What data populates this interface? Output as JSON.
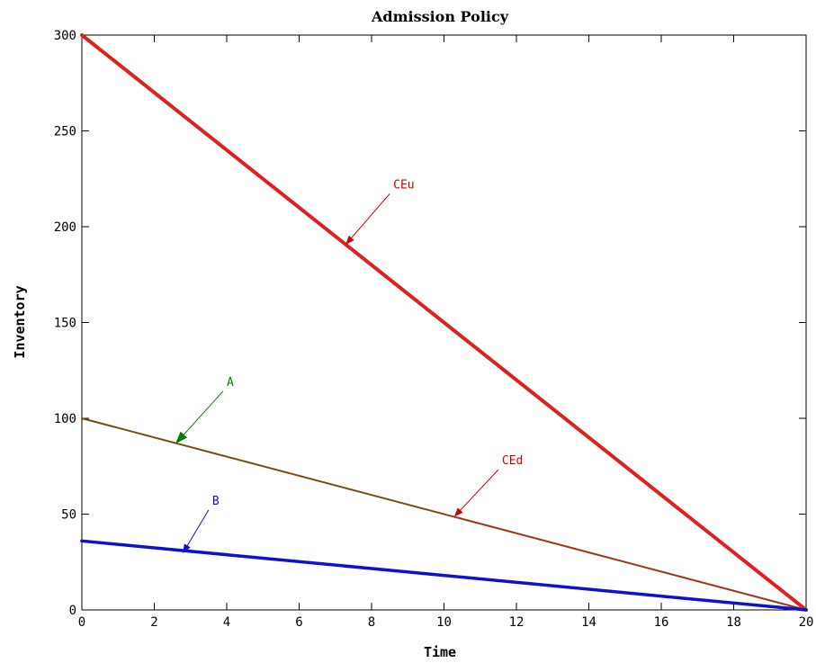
{
  "chart_data": {
    "type": "line",
    "title": "Admission Policy",
    "xlabel": "Time",
    "ylabel": "Inventory",
    "xlim": [
      0,
      20
    ],
    "ylim": [
      0,
      300
    ],
    "xticks": [
      0,
      2,
      4,
      6,
      8,
      10,
      12,
      14,
      16,
      18,
      20
    ],
    "yticks": [
      0,
      50,
      100,
      150,
      200,
      250,
      300
    ],
    "xtick_labels": [
      "0",
      "2",
      "4",
      "6",
      "8",
      "10",
      "12",
      "14",
      "16",
      "18",
      "20"
    ],
    "ytick_labels": [
      "0",
      "50",
      "100",
      "150",
      "200",
      "250",
      "300"
    ],
    "grid": false,
    "series": [
      {
        "key": "ceu",
        "x": [
          0,
          20
        ],
        "y": [
          300,
          0
        ],
        "color": "#e02020",
        "width": 4
      },
      {
        "key": "a",
        "x": [
          0,
          20
        ],
        "y": [
          100,
          0
        ],
        "color": "#7a4a10",
        "width": 2
      },
      {
        "key": "ced",
        "x": [
          10,
          20
        ],
        "y": [
          50,
          0
        ],
        "color": "#cc2020",
        "width": 1
      },
      {
        "key": "b",
        "x": [
          0,
          20
        ],
        "y": [
          36,
          0
        ],
        "color": "#1010d0",
        "width": 3.5
      }
    ],
    "annotations": [
      {
        "key": "ceu",
        "text": "CEu",
        "tip": [
          7.3,
          191
        ],
        "text_at": [
          8.6,
          220
        ],
        "color": "#cc0000"
      },
      {
        "key": "a",
        "text": "A",
        "tip": [
          2.6,
          87
        ],
        "text_at": [
          4.0,
          117
        ],
        "color": "#008000"
      },
      {
        "key": "ced",
        "text": "CEd",
        "tip": [
          10.3,
          49
        ],
        "text_at": [
          11.6,
          76
        ],
        "color": "#cc0000"
      },
      {
        "key": "b",
        "text": "B",
        "tip": [
          2.8,
          30
        ],
        "text_at": [
          3.6,
          55
        ],
        "color": "#1010d0"
      }
    ]
  }
}
